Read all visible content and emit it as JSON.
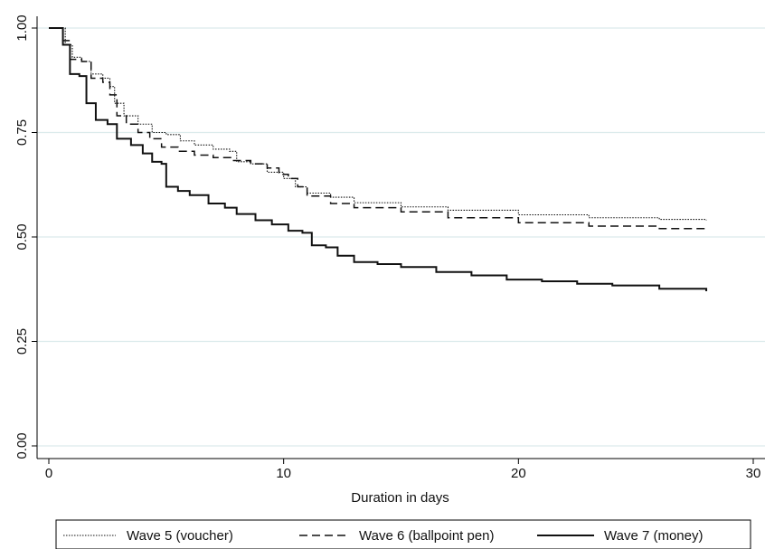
{
  "chart_data": {
    "type": "line",
    "title": "",
    "xlabel": "Duration in days",
    "ylabel": "",
    "xlim": [
      0,
      30
    ],
    "ylim": [
      0,
      1
    ],
    "x_ticks": [
      0,
      10,
      20,
      30
    ],
    "y_ticks": [
      0.0,
      0.25,
      0.5,
      0.75,
      1.0
    ],
    "y_tick_labels": [
      "0.00",
      "0.25",
      "0.50",
      "0.75",
      "1.00"
    ],
    "grid": "horizontal",
    "legend_position": "bottom",
    "colors": {
      "grid": "#dcebec",
      "line": "#111111",
      "axis": "#000000"
    },
    "series": [
      {
        "name": "Wave 5 (voucher)",
        "style": "dotted",
        "points": [
          [
            0,
            1.0
          ],
          [
            0.4,
            1.0
          ],
          [
            0.7,
            0.96
          ],
          [
            1.0,
            0.93
          ],
          [
            1.4,
            0.92
          ],
          [
            1.8,
            0.89
          ],
          [
            2.3,
            0.88
          ],
          [
            2.6,
            0.86
          ],
          [
            2.8,
            0.82
          ],
          [
            3.2,
            0.79
          ],
          [
            3.8,
            0.77
          ],
          [
            4.4,
            0.75
          ],
          [
            5.0,
            0.745
          ],
          [
            5.6,
            0.73
          ],
          [
            6.2,
            0.72
          ],
          [
            7.0,
            0.71
          ],
          [
            7.7,
            0.705
          ],
          [
            8.0,
            0.68
          ],
          [
            8.6,
            0.675
          ],
          [
            9.3,
            0.655
          ],
          [
            10.0,
            0.64
          ],
          [
            10.5,
            0.62
          ],
          [
            11.0,
            0.605
          ],
          [
            12.0,
            0.595
          ],
          [
            13.0,
            0.582
          ],
          [
            15.0,
            0.572
          ],
          [
            17.0,
            0.564
          ],
          [
            20.0,
            0.553
          ],
          [
            23.0,
            0.546
          ],
          [
            26.0,
            0.542
          ],
          [
            28.0,
            0.54
          ]
        ]
      },
      {
        "name": "Wave 6 (ballpoint pen)",
        "style": "dashed",
        "points": [
          [
            0,
            1.0
          ],
          [
            0.4,
            1.0
          ],
          [
            0.6,
            0.97
          ],
          [
            0.9,
            0.925
          ],
          [
            1.4,
            0.92
          ],
          [
            1.8,
            0.88
          ],
          [
            2.3,
            0.87
          ],
          [
            2.6,
            0.84
          ],
          [
            2.9,
            0.79
          ],
          [
            3.3,
            0.77
          ],
          [
            3.8,
            0.75
          ],
          [
            4.3,
            0.735
          ],
          [
            4.8,
            0.715
          ],
          [
            5.5,
            0.705
          ],
          [
            6.2,
            0.696
          ],
          [
            7.0,
            0.69
          ],
          [
            7.8,
            0.683
          ],
          [
            8.6,
            0.675
          ],
          [
            9.3,
            0.665
          ],
          [
            9.8,
            0.65
          ],
          [
            10.2,
            0.64
          ],
          [
            10.6,
            0.62
          ],
          [
            11.0,
            0.598
          ],
          [
            12.0,
            0.58
          ],
          [
            13.0,
            0.57
          ],
          [
            15.0,
            0.56
          ],
          [
            17.0,
            0.546
          ],
          [
            20.0,
            0.534
          ],
          [
            23.0,
            0.526
          ],
          [
            26.0,
            0.52
          ],
          [
            28.0,
            0.518
          ]
        ]
      },
      {
        "name": "Wave 7 (money)",
        "style": "solid",
        "points": [
          [
            0,
            1.0
          ],
          [
            0.4,
            1.0
          ],
          [
            0.6,
            0.96
          ],
          [
            0.9,
            0.89
          ],
          [
            1.3,
            0.885
          ],
          [
            1.6,
            0.82
          ],
          [
            2.0,
            0.78
          ],
          [
            2.5,
            0.77
          ],
          [
            2.9,
            0.735
          ],
          [
            3.5,
            0.72
          ],
          [
            4.0,
            0.7
          ],
          [
            4.4,
            0.68
          ],
          [
            4.8,
            0.675
          ],
          [
            5.0,
            0.62
          ],
          [
            5.5,
            0.61
          ],
          [
            6.0,
            0.6
          ],
          [
            6.8,
            0.58
          ],
          [
            7.5,
            0.57
          ],
          [
            8.0,
            0.555
          ],
          [
            8.8,
            0.54
          ],
          [
            9.5,
            0.53
          ],
          [
            10.2,
            0.515
          ],
          [
            10.8,
            0.51
          ],
          [
            11.2,
            0.48
          ],
          [
            11.8,
            0.475
          ],
          [
            12.3,
            0.455
          ],
          [
            13.0,
            0.44
          ],
          [
            14.0,
            0.435
          ],
          [
            15.0,
            0.428
          ],
          [
            16.5,
            0.416
          ],
          [
            18.0,
            0.408
          ],
          [
            19.5,
            0.398
          ],
          [
            21.0,
            0.394
          ],
          [
            22.5,
            0.388
          ],
          [
            24.0,
            0.384
          ],
          [
            26.0,
            0.376
          ],
          [
            28.0,
            0.37
          ]
        ]
      }
    ]
  }
}
